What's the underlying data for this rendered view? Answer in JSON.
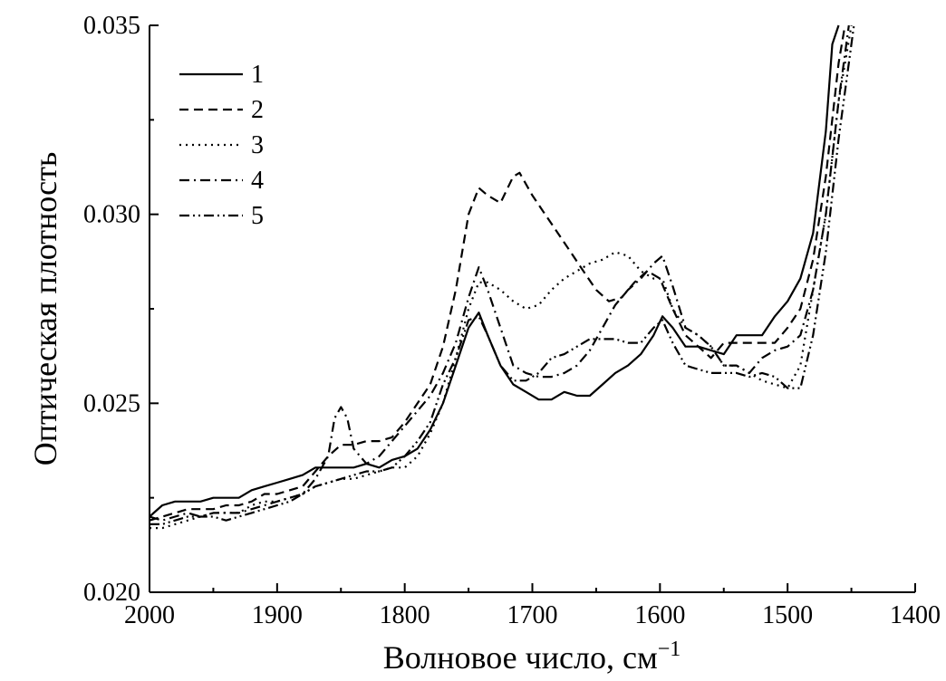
{
  "chart_data": {
    "type": "line",
    "title": "",
    "xlabel": "Волновое число, см",
    "xlabel_sup": "−1",
    "ylabel": "Оптическая плотность",
    "xlim": [
      2000,
      1400
    ],
    "ylim": [
      0.02,
      0.035
    ],
    "x_reversed": true,
    "x_ticks": [
      "2000",
      "1900",
      "1800",
      "1700",
      "1600",
      "1500",
      "1400"
    ],
    "y_ticks": [
      "0.020",
      "0.025",
      "0.030",
      "0.035"
    ],
    "grid": false,
    "legend_position": "top-left",
    "series": [
      {
        "name": "1",
        "dash": "solid",
        "x": [
          2000,
          1990,
          1980,
          1970,
          1960,
          1950,
          1940,
          1930,
          1920,
          1910,
          1900,
          1890,
          1880,
          1870,
          1860,
          1850,
          1840,
          1830,
          1820,
          1810,
          1800,
          1790,
          1780,
          1770,
          1760,
          1750,
          1742,
          1735,
          1725,
          1715,
          1705,
          1695,
          1685,
          1675,
          1665,
          1655,
          1645,
          1635,
          1625,
          1615,
          1605,
          1598,
          1590,
          1580,
          1570,
          1560,
          1550,
          1540,
          1530,
          1520,
          1510,
          1500,
          1490,
          1480,
          1470,
          1465,
          1460
        ],
        "y": [
          0.022,
          0.0223,
          0.0224,
          0.0224,
          0.0224,
          0.0225,
          0.0225,
          0.0225,
          0.0227,
          0.0228,
          0.0229,
          0.023,
          0.0231,
          0.0233,
          0.0233,
          0.0233,
          0.0233,
          0.0234,
          0.0233,
          0.0235,
          0.0236,
          0.0238,
          0.0243,
          0.025,
          0.026,
          0.027,
          0.0274,
          0.0268,
          0.026,
          0.0255,
          0.0253,
          0.0251,
          0.0251,
          0.0253,
          0.0252,
          0.0252,
          0.0255,
          0.0258,
          0.026,
          0.0263,
          0.0268,
          0.0273,
          0.027,
          0.0265,
          0.0265,
          0.0264,
          0.0263,
          0.0268,
          0.0268,
          0.0268,
          0.0273,
          0.0277,
          0.0283,
          0.0295,
          0.0322,
          0.0345,
          0.035
        ]
      },
      {
        "name": "2",
        "dash": "dashed",
        "x": [
          2000,
          1990,
          1980,
          1970,
          1960,
          1950,
          1940,
          1930,
          1920,
          1910,
          1900,
          1890,
          1880,
          1870,
          1860,
          1850,
          1840,
          1830,
          1820,
          1810,
          1800,
          1790,
          1780,
          1770,
          1760,
          1750,
          1742,
          1735,
          1725,
          1715,
          1710,
          1700,
          1690,
          1680,
          1670,
          1660,
          1650,
          1640,
          1630,
          1620,
          1610,
          1600,
          1590,
          1580,
          1570,
          1560,
          1550,
          1540,
          1530,
          1520,
          1510,
          1500,
          1490,
          1480,
          1470,
          1460,
          1455
        ],
        "y": [
          0.0219,
          0.022,
          0.0221,
          0.0222,
          0.0222,
          0.0222,
          0.0223,
          0.0223,
          0.0224,
          0.0226,
          0.0226,
          0.0227,
          0.0228,
          0.0232,
          0.0236,
          0.0239,
          0.0239,
          0.024,
          0.024,
          0.0241,
          0.0245,
          0.025,
          0.0255,
          0.0265,
          0.028,
          0.03,
          0.0307,
          0.0305,
          0.0303,
          0.031,
          0.0311,
          0.0305,
          0.03,
          0.0295,
          0.029,
          0.0285,
          0.028,
          0.0277,
          0.0278,
          0.0282,
          0.0285,
          0.0283,
          0.0275,
          0.0268,
          0.0265,
          0.0262,
          0.0266,
          0.0266,
          0.0266,
          0.0266,
          0.0266,
          0.027,
          0.0275,
          0.0288,
          0.031,
          0.034,
          0.035
        ]
      },
      {
        "name": "3",
        "dash": "dotted",
        "x": [
          2000,
          1990,
          1980,
          1970,
          1960,
          1950,
          1940,
          1930,
          1920,
          1910,
          1900,
          1890,
          1880,
          1870,
          1860,
          1850,
          1840,
          1830,
          1820,
          1810,
          1800,
          1790,
          1780,
          1770,
          1760,
          1750,
          1742,
          1735,
          1725,
          1715,
          1705,
          1695,
          1685,
          1675,
          1665,
          1655,
          1645,
          1635,
          1625,
          1615,
          1605,
          1598,
          1590,
          1580,
          1570,
          1560,
          1550,
          1540,
          1530,
          1520,
          1510,
          1500,
          1490,
          1480,
          1470,
          1460,
          1450
        ],
        "y": [
          0.0217,
          0.0217,
          0.0218,
          0.0219,
          0.022,
          0.0221,
          0.0221,
          0.0221,
          0.0223,
          0.0224,
          0.0224,
          0.0225,
          0.0226,
          0.0228,
          0.0229,
          0.023,
          0.023,
          0.0231,
          0.0232,
          0.0233,
          0.0233,
          0.0236,
          0.0242,
          0.025,
          0.0262,
          0.0275,
          0.0282,
          0.0282,
          0.028,
          0.0277,
          0.0275,
          0.0276,
          0.028,
          0.0283,
          0.0285,
          0.0287,
          0.0288,
          0.029,
          0.0289,
          0.0285,
          0.0283,
          0.0283,
          0.0275,
          0.027,
          0.0268,
          0.0265,
          0.026,
          0.026,
          0.0258,
          0.0256,
          0.0255,
          0.0254,
          0.026,
          0.028,
          0.03,
          0.033,
          0.035
        ]
      },
      {
        "name": "4",
        "dash": "dash-dot",
        "x": [
          2000,
          1990,
          1980,
          1970,
          1960,
          1950,
          1940,
          1930,
          1920,
          1910,
          1900,
          1890,
          1880,
          1870,
          1860,
          1855,
          1850,
          1845,
          1840,
          1830,
          1820,
          1810,
          1800,
          1790,
          1780,
          1770,
          1760,
          1750,
          1742,
          1735,
          1725,
          1715,
          1705,
          1695,
          1685,
          1675,
          1665,
          1655,
          1645,
          1635,
          1625,
          1615,
          1605,
          1598,
          1590,
          1580,
          1570,
          1560,
          1550,
          1540,
          1530,
          1520,
          1510,
          1500,
          1490,
          1480,
          1470,
          1460,
          1452
        ],
        "y": [
          0.022,
          0.0219,
          0.022,
          0.0221,
          0.022,
          0.0221,
          0.0221,
          0.0221,
          0.0222,
          0.0223,
          0.0224,
          0.0225,
          0.0226,
          0.023,
          0.0236,
          0.0246,
          0.0249,
          0.0246,
          0.0238,
          0.0234,
          0.0236,
          0.024,
          0.0244,
          0.0248,
          0.0252,
          0.0258,
          0.0266,
          0.0278,
          0.0286,
          0.028,
          0.027,
          0.026,
          0.0258,
          0.0257,
          0.0257,
          0.0258,
          0.026,
          0.0264,
          0.027,
          0.0276,
          0.028,
          0.0283,
          0.0287,
          0.0289,
          0.0281,
          0.027,
          0.0268,
          0.0265,
          0.026,
          0.026,
          0.0258,
          0.0262,
          0.0264,
          0.0265,
          0.0268,
          0.028,
          0.03,
          0.033,
          0.035
        ]
      },
      {
        "name": "5",
        "dash": "dash-dot-dot",
        "x": [
          2000,
          1990,
          1980,
          1970,
          1960,
          1950,
          1940,
          1930,
          1920,
          1910,
          1900,
          1890,
          1880,
          1870,
          1860,
          1850,
          1840,
          1830,
          1820,
          1810,
          1800,
          1790,
          1780,
          1770,
          1760,
          1750,
          1742,
          1735,
          1725,
          1715,
          1705,
          1695,
          1685,
          1675,
          1665,
          1655,
          1645,
          1635,
          1625,
          1615,
          1605,
          1598,
          1590,
          1580,
          1570,
          1560,
          1550,
          1540,
          1530,
          1520,
          1510,
          1500,
          1490,
          1480,
          1470,
          1460,
          1448
        ],
        "y": [
          0.0218,
          0.0218,
          0.0219,
          0.022,
          0.022,
          0.022,
          0.0219,
          0.022,
          0.0221,
          0.0222,
          0.0223,
          0.0224,
          0.0226,
          0.0228,
          0.0229,
          0.023,
          0.0231,
          0.0232,
          0.0232,
          0.0233,
          0.0236,
          0.024,
          0.0245,
          0.0255,
          0.0262,
          0.0272,
          0.0273,
          0.0268,
          0.026,
          0.0256,
          0.0256,
          0.0258,
          0.0262,
          0.0263,
          0.0265,
          0.0267,
          0.0267,
          0.0267,
          0.0266,
          0.0266,
          0.027,
          0.0272,
          0.0266,
          0.026,
          0.0259,
          0.0258,
          0.0258,
          0.0258,
          0.0257,
          0.0258,
          0.0257,
          0.0254,
          0.0254,
          0.0268,
          0.029,
          0.032,
          0.035
        ]
      }
    ]
  }
}
